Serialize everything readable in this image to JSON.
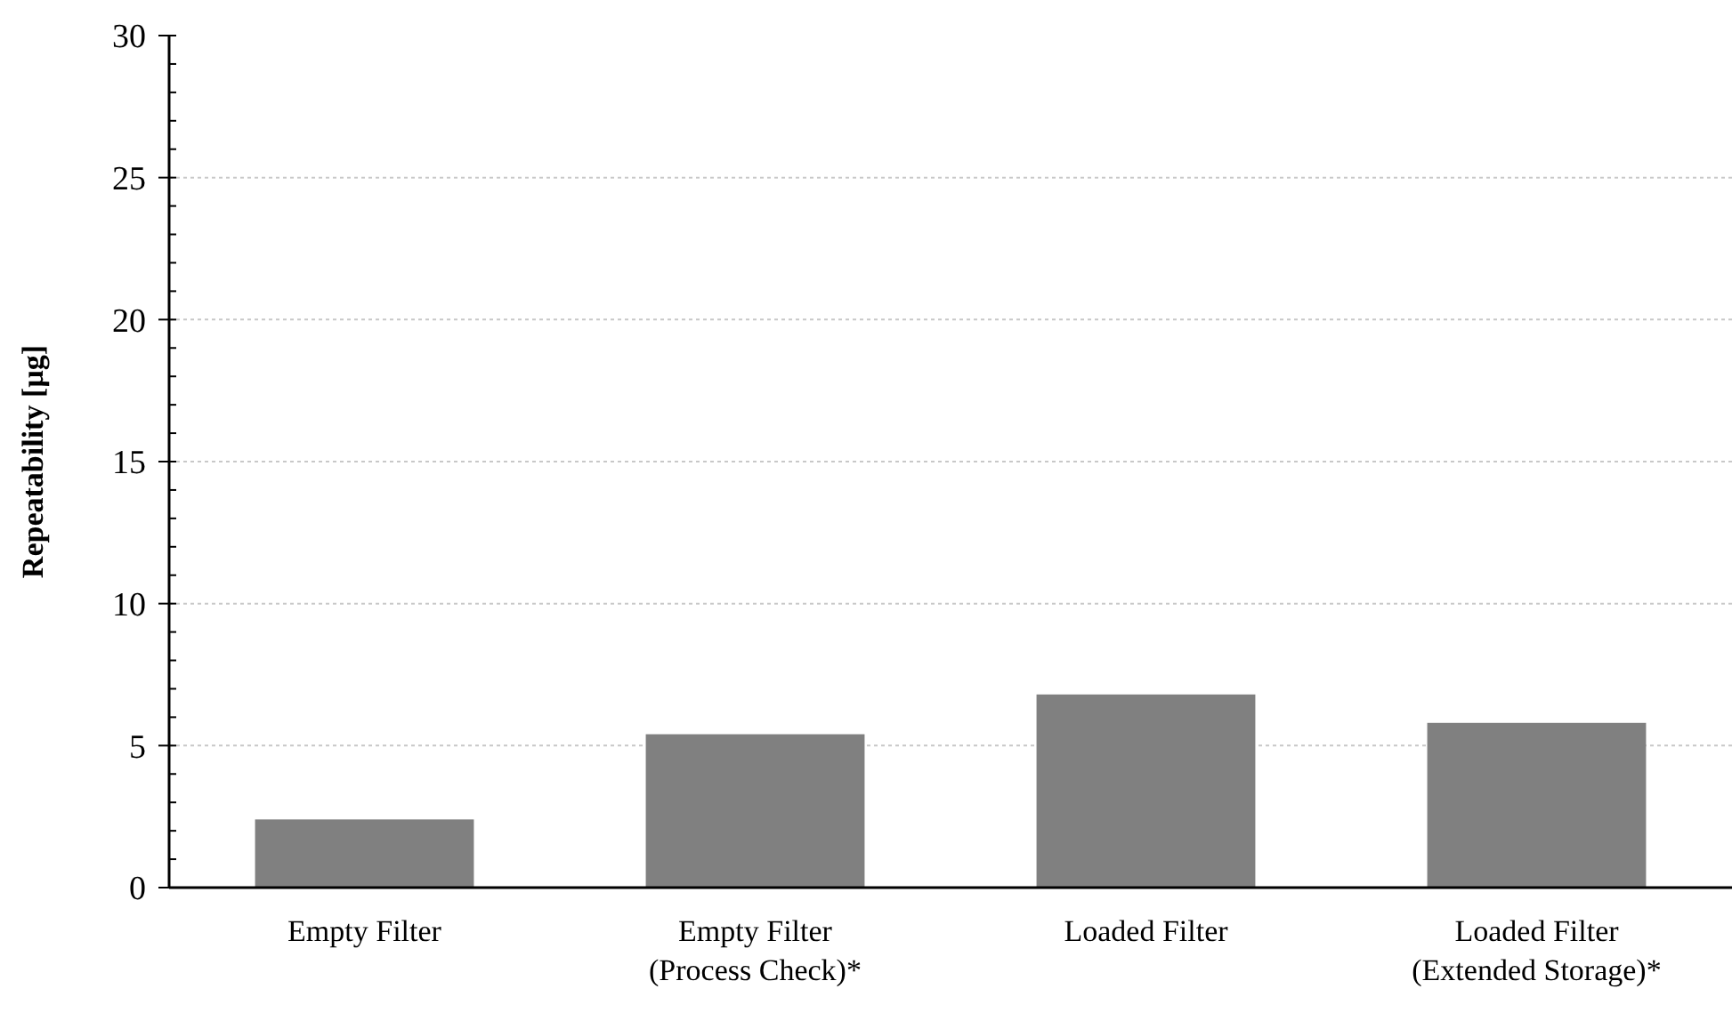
{
  "chart_data": {
    "type": "bar",
    "ylabel": "Repeatability [µg]",
    "categories": [
      "Empty Filter",
      "Empty Filter\n(Process Check)*",
      "Loaded Filter",
      "Loaded Filter\n(Extended Storage)*"
    ],
    "values": [
      2.4,
      5.4,
      6.8,
      5.8
    ],
    "color": "#808080",
    "ylim": [
      0,
      30
    ],
    "yticks": [
      0,
      5,
      10,
      15,
      20,
      25,
      30
    ],
    "grid": "y"
  }
}
